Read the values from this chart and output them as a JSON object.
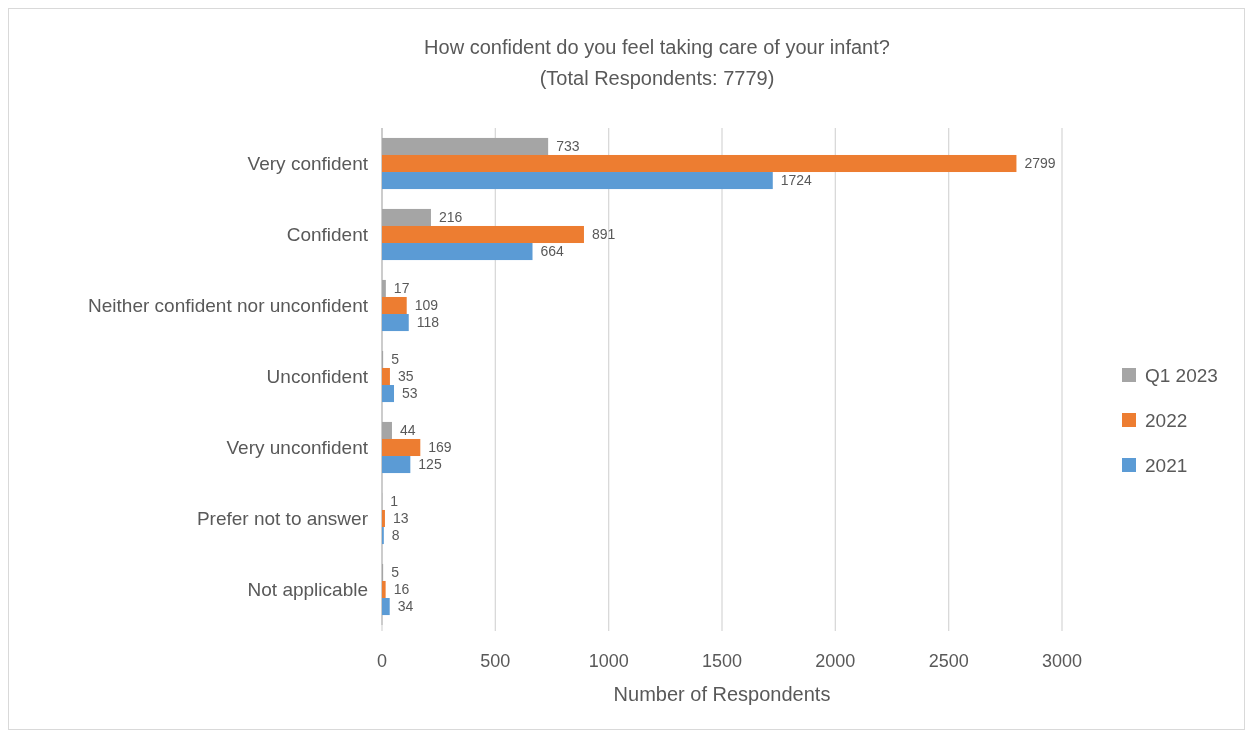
{
  "chart_data": {
    "type": "bar",
    "orientation": "horizontal",
    "title": "How confident do you feel taking care of your infant?",
    "subtitle": "(Total Respondents: 7779)",
    "xlabel": "Number of Respondents",
    "categories": [
      "Very confident",
      "Confident",
      "Neither confident nor unconfident",
      "Unconfident",
      "Very unconfident",
      "Prefer not to answer",
      "Not applicable"
    ],
    "series": [
      {
        "name": "Q1 2023",
        "color": "#a5a5a5",
        "values": [
          733,
          216,
          17,
          5,
          44,
          1,
          5
        ]
      },
      {
        "name": "2022",
        "color": "#ed7d31",
        "values": [
          2799,
          891,
          109,
          35,
          169,
          13,
          16
        ]
      },
      {
        "name": "2021",
        "color": "#5b9bd5",
        "values": [
          1724,
          664,
          118,
          53,
          125,
          8,
          34
        ]
      }
    ],
    "xlim": [
      0,
      3000
    ],
    "xticks": [
      0,
      500,
      1000,
      1500,
      2000,
      2500,
      3000
    ],
    "grid": "x",
    "legend": "right",
    "data_labels": true
  }
}
